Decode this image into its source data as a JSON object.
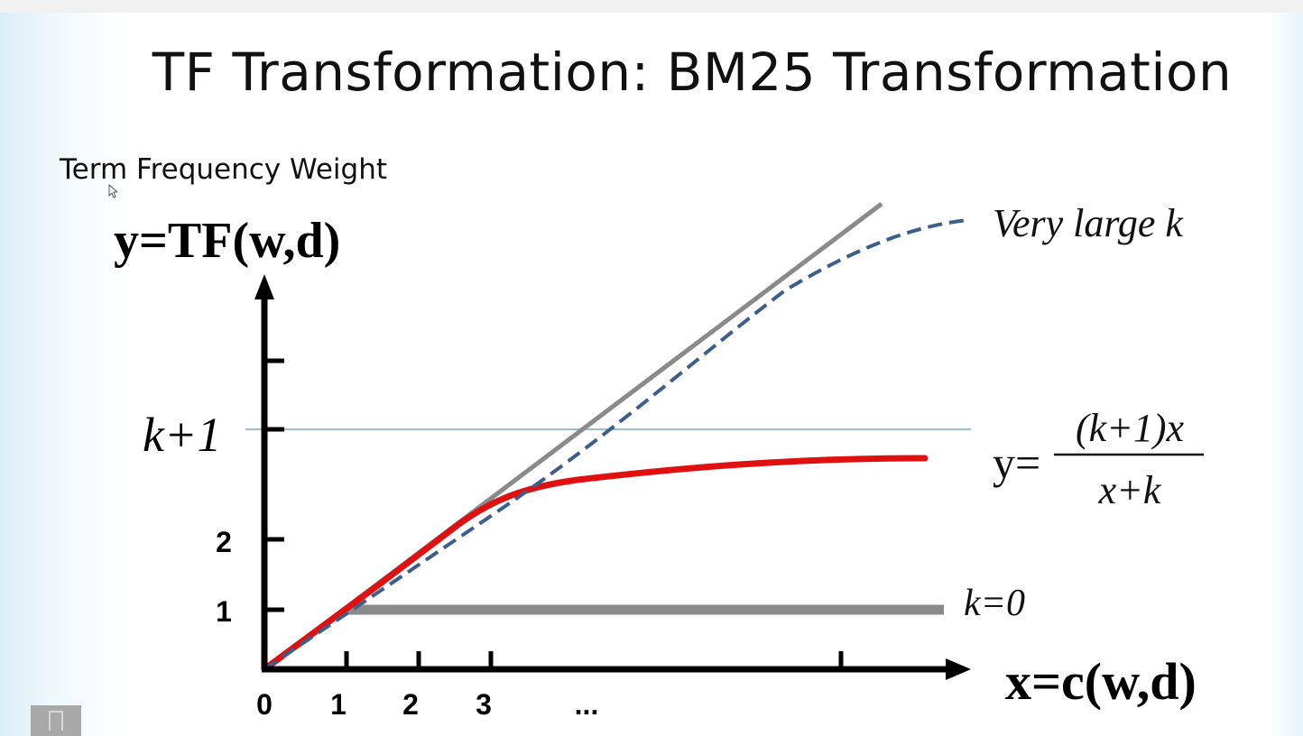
{
  "slide": {
    "title": "TF Transformation: BM25 Transformation",
    "caption": "Term Frequency Weight"
  },
  "diagram": {
    "y_axis_label": "y=TF(w,d)",
    "x_axis_label": "x=c(w,d)",
    "x_ticks": [
      "0",
      "1",
      "2",
      "3",
      "..."
    ],
    "y_ticks": [
      "1",
      "2"
    ],
    "k_plus_one_label": "k+1",
    "very_large_k_label": "Very large k",
    "k_zero_label": "k=0",
    "formula": {
      "lhs": "y=",
      "numerator": "(k+1)x",
      "denominator": "x+k"
    }
  },
  "colors": {
    "bm25_curve": "#e01010",
    "large_k_curve": "#3b5e8c",
    "linear_and_k0": "#8a8a8a",
    "k_plus_one_line": "#7fa3c4",
    "axes": "#000000"
  }
}
